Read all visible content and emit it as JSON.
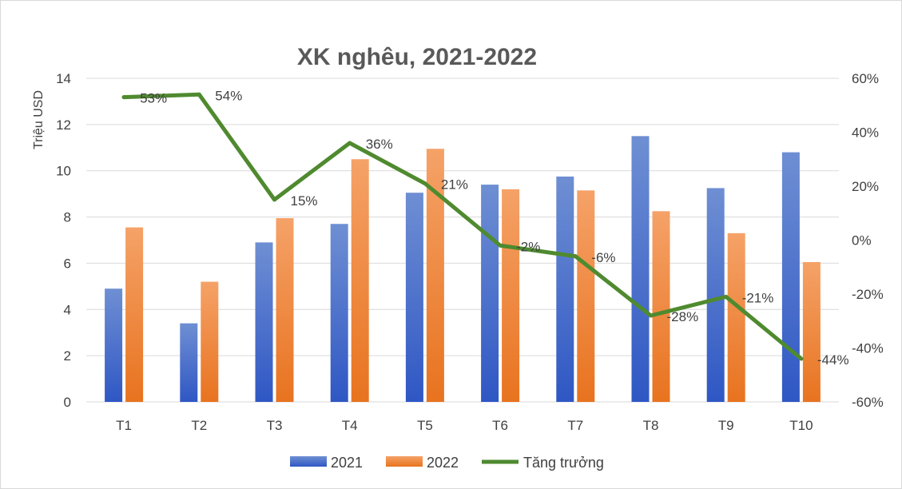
{
  "colors": {
    "bar_2021_top": "#6f8fd3",
    "bar_2021_bottom": "#2f57c4",
    "bar_2022_top": "#f5a268",
    "bar_2022_bottom": "#e8731f",
    "growth_line": "#4f8a2f",
    "grid": "#d9d9d9"
  },
  "chart_data": {
    "type": "bar",
    "title": "XK nghêu, 2021-2022",
    "xlabel": "",
    "ylabel": "Triệu USD",
    "categories": [
      "T1",
      "T2",
      "T3",
      "T4",
      "T5",
      "T6",
      "T7",
      "T8",
      "T9",
      "T10"
    ],
    "ylim": [
      0,
      14
    ],
    "yticks": [
      0,
      2,
      4,
      6,
      8,
      10,
      12,
      14
    ],
    "y2lim": [
      -60,
      60
    ],
    "y2ticks": [
      "60%",
      "40%",
      "20%",
      "0%",
      "-20%",
      "-40%",
      "-60%"
    ],
    "grid": true,
    "legend_position": "bottom",
    "series": [
      {
        "name": "2021",
        "type": "bar",
        "axis": "left",
        "values": [
          4.9,
          3.4,
          6.9,
          7.7,
          9.05,
          9.4,
          9.75,
          11.5,
          9.25,
          10.8
        ]
      },
      {
        "name": "2022",
        "type": "bar",
        "axis": "left",
        "values": [
          7.55,
          5.2,
          7.95,
          10.5,
          10.95,
          9.2,
          9.15,
          8.25,
          7.3,
          6.05
        ]
      },
      {
        "name": "Tăng trưởng",
        "type": "line",
        "axis": "right",
        "values": [
          53,
          54,
          15,
          36,
          21,
          -2,
          -6,
          -28,
          -21,
          -44
        ],
        "labels": [
          "53%",
          "54%",
          "15%",
          "36%",
          "21%",
          "-2%",
          "-6%",
          "-28%",
          "-21%",
          "-44%"
        ]
      }
    ]
  }
}
